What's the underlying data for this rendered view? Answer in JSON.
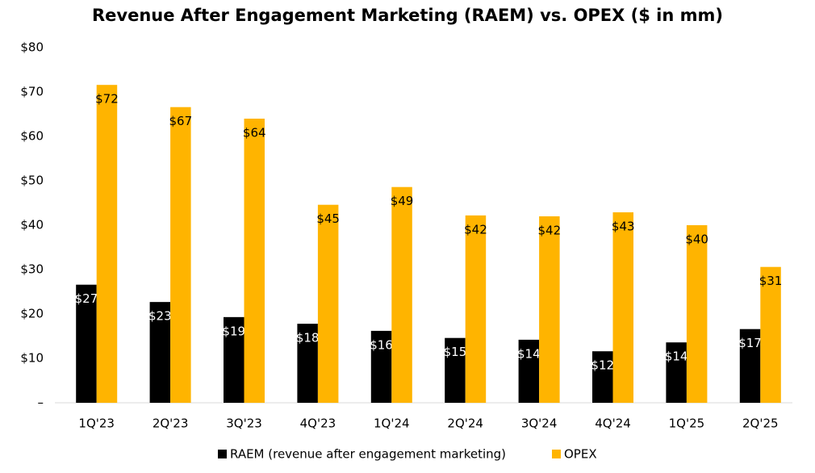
{
  "chart_data": {
    "type": "bar",
    "title": "Revenue After Engagement Marketing (RAEM) vs. OPEX ($ in mm)",
    "categories": [
      "1Q'23",
      "2Q'23",
      "3Q'23",
      "4Q'23",
      "1Q'24",
      "2Q'24",
      "3Q'24",
      "4Q'24",
      "1Q'25",
      "2Q'25"
    ],
    "series": [
      {
        "name": "RAEM (revenue after engagement marketing)",
        "color": "#000000",
        "values": [
          26.6,
          22.7,
          19.3,
          17.8,
          16.2,
          14.6,
          14.2,
          11.6,
          13.6,
          16.6
        ],
        "value_labels": [
          "$27",
          "$23",
          "$19",
          "$18",
          "$16",
          "$15",
          "$14",
          "$12",
          "$14",
          "$17"
        ]
      },
      {
        "name": "OPEX",
        "color": "#ffb400",
        "values": [
          71.6,
          66.6,
          64.0,
          44.6,
          48.6,
          42.2,
          42.0,
          42.9,
          40.0,
          30.6
        ],
        "value_labels": [
          "$72",
          "$67",
          "$64",
          "$45",
          "$49",
          "$42",
          "$42",
          "$43",
          "$40",
          "$31"
        ]
      }
    ],
    "ylim": [
      0,
      80
    ],
    "yticks": [
      {
        "value": 0,
        "label": "–"
      },
      {
        "value": 10,
        "label": "$10"
      },
      {
        "value": 20,
        "label": "$20"
      },
      {
        "value": 30,
        "label": "$30"
      },
      {
        "value": 40,
        "label": "$40"
      },
      {
        "value": 50,
        "label": "$50"
      },
      {
        "value": 60,
        "label": "$60"
      },
      {
        "value": 70,
        "label": "$70"
      },
      {
        "value": 80,
        "label": "$80"
      }
    ],
    "grid": false,
    "legend": "bottom"
  }
}
